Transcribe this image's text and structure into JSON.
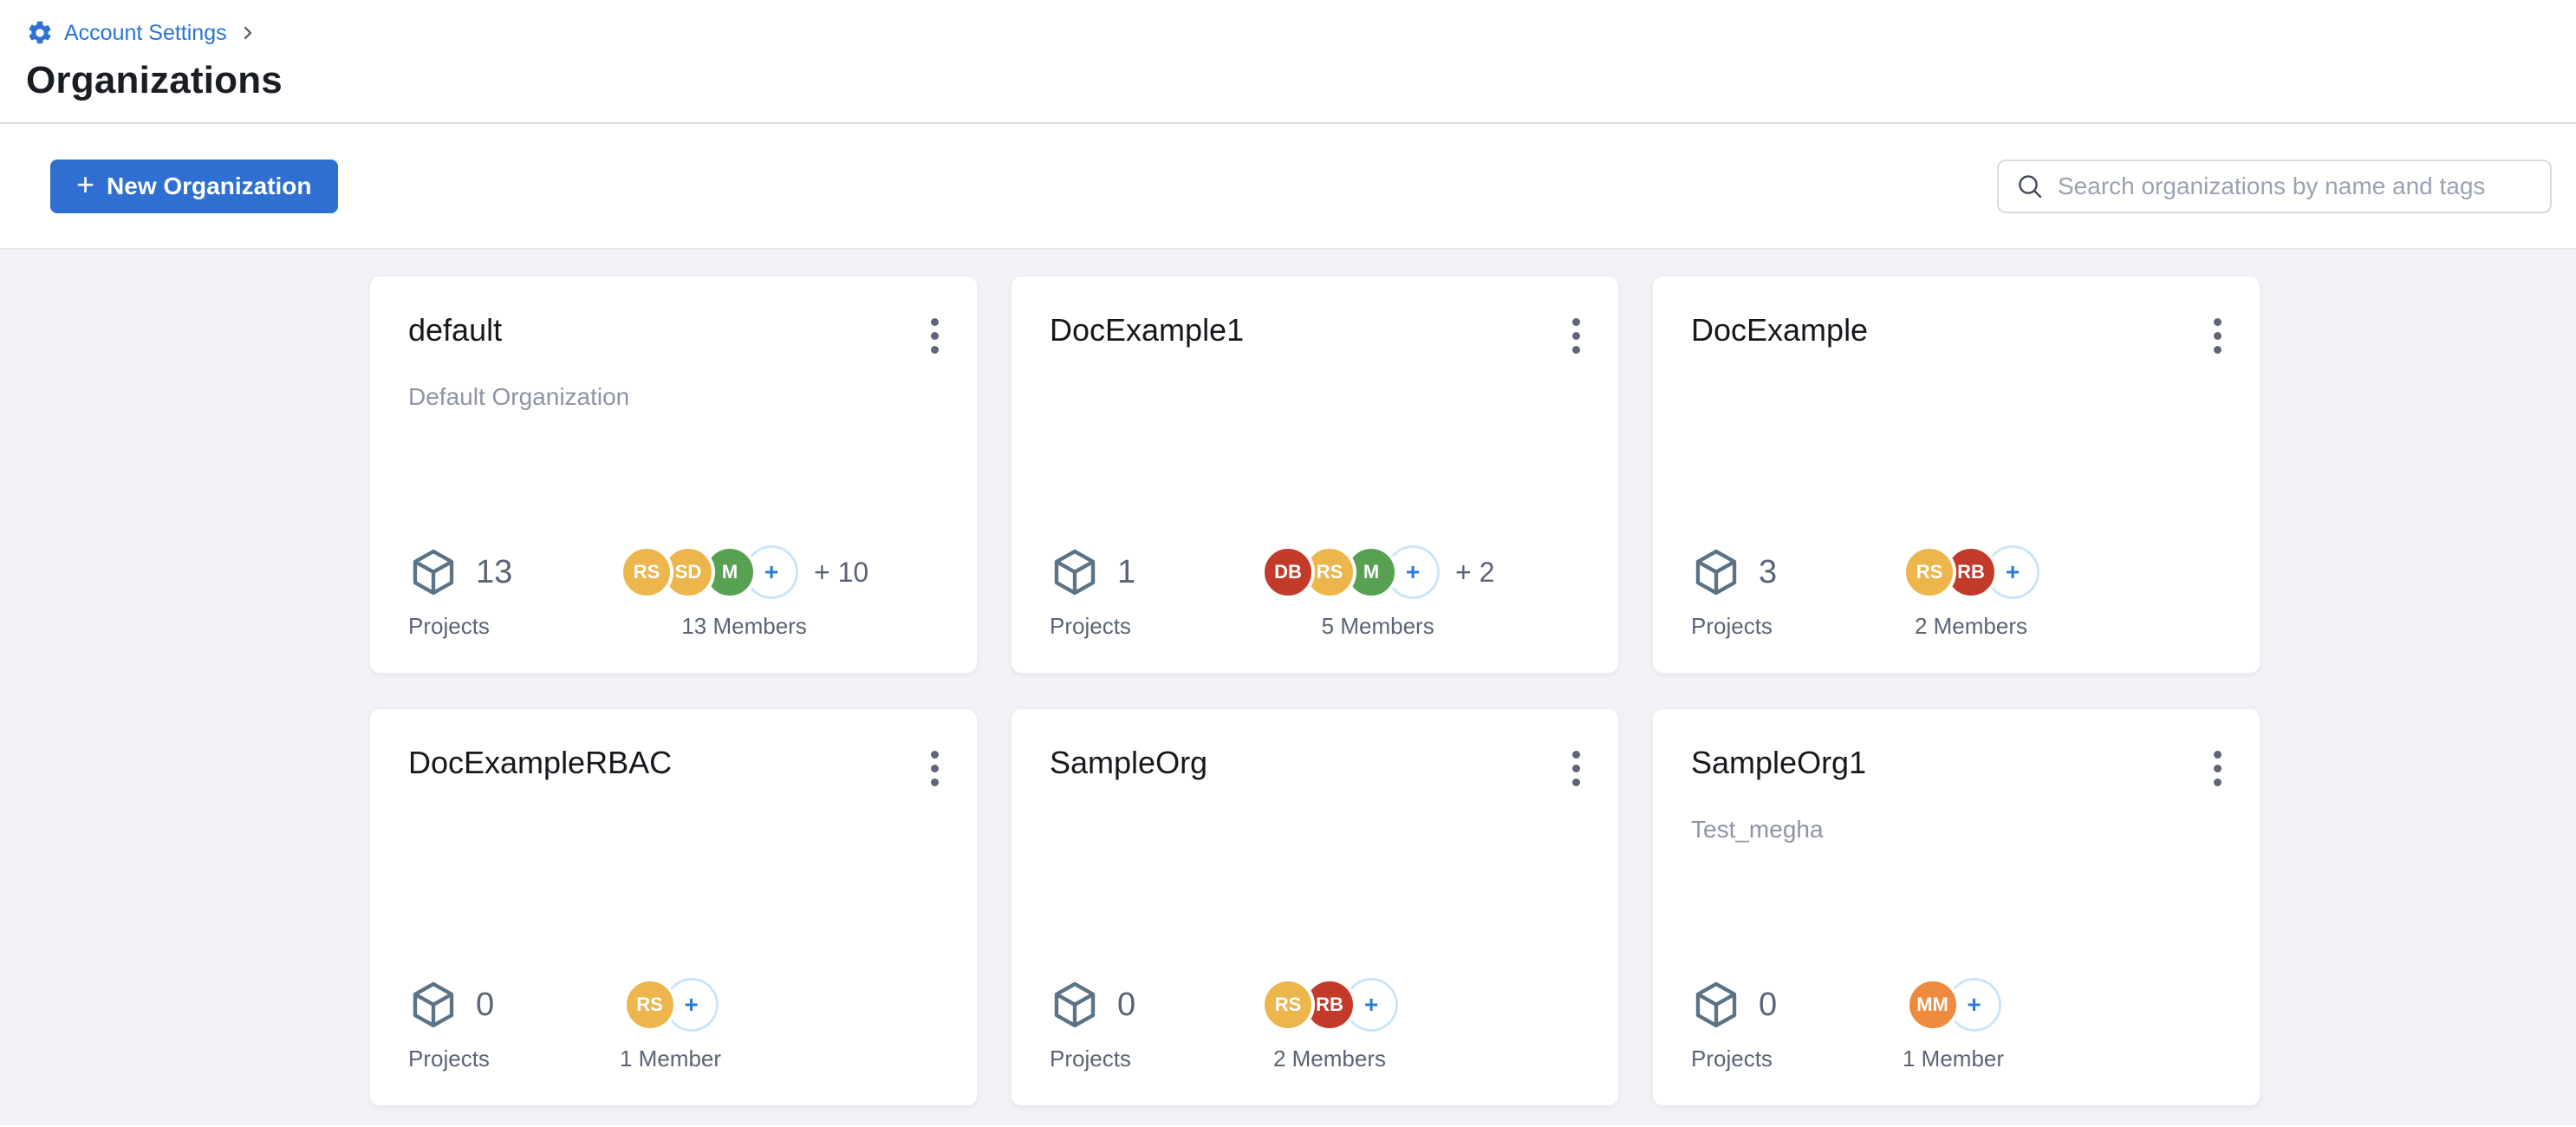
{
  "breadcrumb": {
    "label": "Account Settings",
    "separator": "›"
  },
  "page": {
    "title": "Organizations"
  },
  "toolbar": {
    "new_org_label": "New Organization",
    "search_placeholder": "Search organizations by name and tags",
    "search_value": ""
  },
  "labels": {
    "projects": "Projects",
    "plus": "+"
  },
  "colors": {
    "accent_blue": "#2e6fd1",
    "link_blue": "#2b74d3",
    "content_bg": "#f1f1f6",
    "stat_text": "#5b6474",
    "description_text": "#8f94a5",
    "cube_stroke": "#5b7386",
    "plus_badge_border": "#cbe5f8",
    "plus_badge_text": "#2b7cd9",
    "avatar_amber": "#ecb64d",
    "avatar_red": "#c23a2a",
    "avatar_green": "#58a052",
    "avatar_orange": "#ee8a3e"
  },
  "cards": [
    {
      "name": "default",
      "description": "Default Organization",
      "project_count": "13",
      "members_label": "13 Members",
      "extra_members": "+ 10",
      "avatars": [
        {
          "initials": "RS",
          "color": "#ecb64d"
        },
        {
          "initials": "SD",
          "color": "#ecb64d"
        },
        {
          "initials": "M",
          "color": "#58a052"
        }
      ]
    },
    {
      "name": "DocExample1",
      "description": "",
      "project_count": "1",
      "members_label": "5 Members",
      "extra_members": "+ 2",
      "avatars": [
        {
          "initials": "DB",
          "color": "#c23a2a"
        },
        {
          "initials": "RS",
          "color": "#ecb64d"
        },
        {
          "initials": "M",
          "color": "#58a052"
        }
      ]
    },
    {
      "name": "DocExample",
      "description": "",
      "project_count": "3",
      "members_label": "2 Members",
      "extra_members": "",
      "avatars": [
        {
          "initials": "RS",
          "color": "#ecb64d"
        },
        {
          "initials": "RB",
          "color": "#c23a2a"
        }
      ]
    },
    {
      "name": "DocExampleRBAC",
      "description": "",
      "project_count": "0",
      "members_label": "1 Member",
      "extra_members": "",
      "avatars": [
        {
          "initials": "RS",
          "color": "#ecb64d"
        }
      ]
    },
    {
      "name": "SampleOrg",
      "description": "",
      "project_count": "0",
      "members_label": "2 Members",
      "extra_members": "",
      "avatars": [
        {
          "initials": "RS",
          "color": "#ecb64d"
        },
        {
          "initials": "RB",
          "color": "#c23a2a"
        }
      ]
    },
    {
      "name": "SampleOrg1",
      "description": "Test_megha",
      "project_count": "0",
      "members_label": "1 Member",
      "extra_members": "",
      "avatars": [
        {
          "initials": "MM",
          "color": "#ee8a3e"
        }
      ]
    }
  ]
}
